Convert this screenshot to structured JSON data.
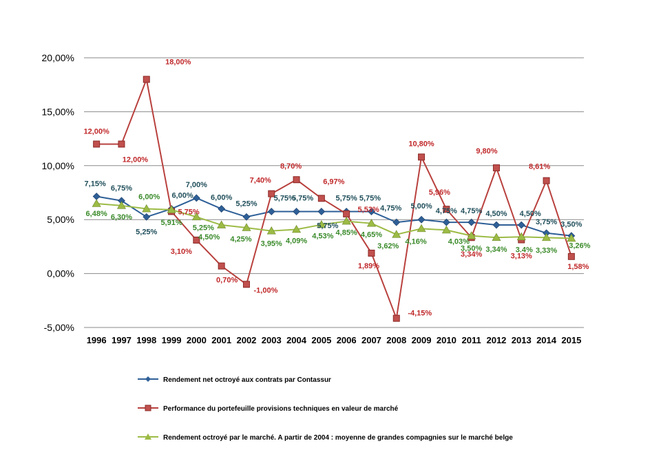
{
  "chart_data": {
    "type": "line",
    "title": "",
    "xlabel": "",
    "ylabel": "",
    "categories": [
      "1996",
      "1997",
      "1998",
      "1999",
      "2000",
      "2001",
      "2002",
      "2003",
      "2004",
      "2005",
      "2006",
      "2007",
      "2008",
      "2009",
      "2010",
      "2011",
      "2012",
      "2013",
      "2014",
      "2015"
    ],
    "ylim": [
      -5,
      20
    ],
    "yticks": [
      -5,
      0,
      5,
      10,
      15,
      20
    ],
    "ytick_labels": [
      "-5,00%",
      "0,00%",
      "5,00%",
      "10,00%",
      "15,00%",
      "20,00%"
    ],
    "grid": "horizontal",
    "legend_position": "bottom",
    "series": [
      {
        "name": "Rendement net octroyé aux contrats par Contassur",
        "color": "#2e5f97",
        "label_color": "#1f4e5a",
        "marker": "diamond",
        "values": [
          7.15,
          6.75,
          5.25,
          6.0,
          7.0,
          6.0,
          5.25,
          5.75,
          5.75,
          5.75,
          5.75,
          5.75,
          4.75,
          5.0,
          4.75,
          4.75,
          4.5,
          4.5,
          3.75,
          3.5
        ],
        "labels": [
          "7,15%",
          "6,75%",
          "5,25%",
          "6,00%",
          "7,00%",
          "6,00%",
          "5,25%",
          "5,75%",
          "5,75%",
          "5,75%",
          "5,75%",
          "5,75%",
          "4,75%",
          "5,00%",
          "4,75%",
          "4,75%",
          "4,50%",
          "4,50%",
          "3,75%",
          "3,50%"
        ]
      },
      {
        "name": "Performance du portefeuille provisions techniques en valeur de marché",
        "color": "#b8403d",
        "label_color": "#c0282a",
        "marker": "square",
        "values": [
          12.0,
          12.0,
          18.0,
          5.75,
          3.1,
          0.7,
          -1.0,
          7.4,
          8.7,
          6.97,
          5.53,
          1.89,
          -4.15,
          10.8,
          5.96,
          3.34,
          9.8,
          3.13,
          8.61,
          1.58
        ],
        "labels": [
          "12,00%",
          "12,00%",
          "18,00%",
          "5,75%",
          "3,10%",
          "0,70%",
          "-1,00%",
          "7,40%",
          "8,70%",
          "6,97%",
          "5,53%",
          "1,89%",
          "-4,15%",
          "10,80%",
          "5,96%",
          "3,34%",
          "9,80%",
          "3,13%",
          "8,61%",
          "1,58%"
        ]
      },
      {
        "name": "Rendement octroyé par le marché. A partir de 2004 : moyenne de grandes compagnies sur le marché belge",
        "color": "#9cbb45",
        "label_color": "#3a8a2a",
        "marker": "triangle",
        "values": [
          6.48,
          6.3,
          6.0,
          5.91,
          5.25,
          4.5,
          4.25,
          3.95,
          4.09,
          4.53,
          4.85,
          4.65,
          3.62,
          4.16,
          4.03,
          3.5,
          3.34,
          3.4,
          3.33,
          3.26
        ],
        "labels": [
          "6,48%",
          "6,30%",
          "6,00%",
          "5,91%",
          "5,25%",
          "4,50%",
          "4,25%",
          "3,95%",
          "4,09%",
          "4,53%",
          "4,85%",
          "4,65%",
          "3,62%",
          "4,16%",
          "4,03%",
          "3,50%",
          "3,34%",
          "3.4%",
          "3,33%",
          "3,26%"
        ]
      }
    ]
  }
}
